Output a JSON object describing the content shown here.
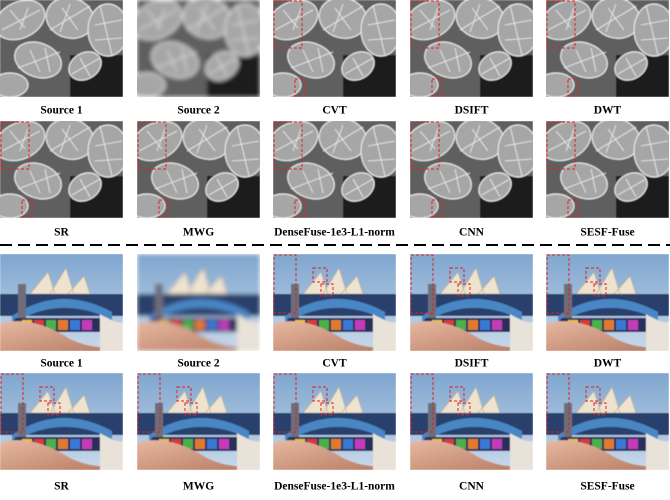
{
  "panels": [
    {
      "rows": [
        {
          "labels": [
            "Source 1",
            "Source 2",
            "CVT",
            "DSIFT",
            "DWT"
          ]
        },
        {
          "labels": [
            "SR",
            "MWG",
            "DenseFuse-1e3-L1-norm",
            "CNN",
            "SESF-Fuse"
          ]
        }
      ]
    },
    {
      "rows": [
        {
          "labels": [
            "Source 1",
            "Source 2",
            "CVT",
            "DSIFT",
            "DWT"
          ]
        },
        {
          "labels": [
            "SR",
            "MWG",
            "DenseFuse-1e3-L1-norm",
            "CNN",
            "SESF-Fuse"
          ]
        }
      ]
    }
  ]
}
